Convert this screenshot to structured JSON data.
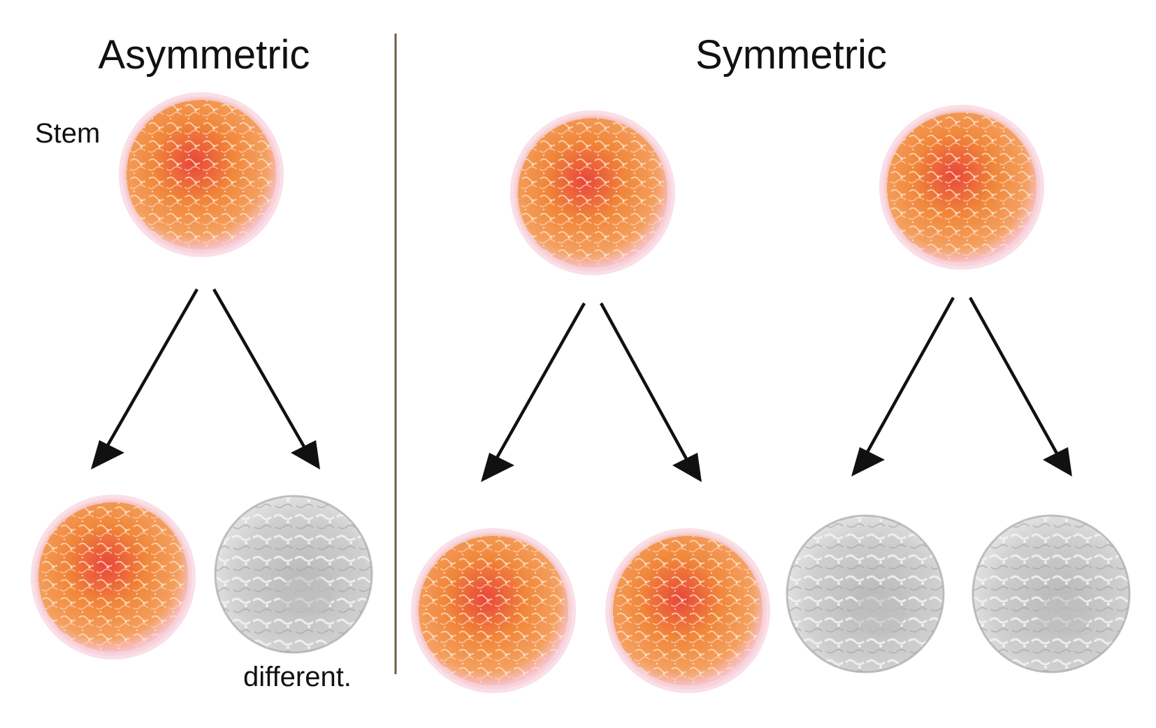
{
  "panels": {
    "asymmetric": {
      "title": "Asymmetric",
      "parent_label": "Stem",
      "child_label": "different."
    },
    "symmetric": {
      "title": "Symmetric"
    }
  },
  "colors": {
    "stem_cell": "#f0873a",
    "stem_cell_core": "#e8473a",
    "stem_cell_halo": "#f7c4d2",
    "differentiated_cell": "#c9c9c9",
    "differentiated_cell_texture": "#f2f2f2",
    "divider": "#6e5e43",
    "arrow": "#111111"
  }
}
